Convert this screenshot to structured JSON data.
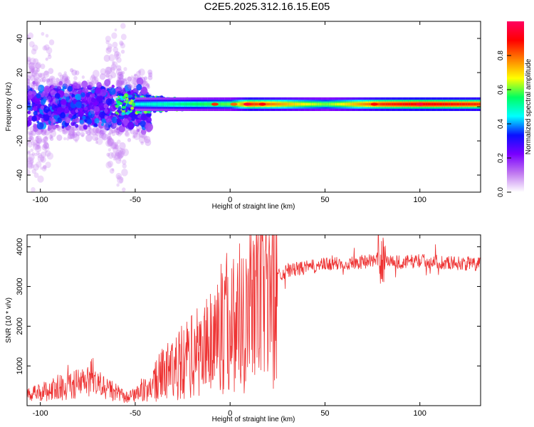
{
  "chart_data": [
    {
      "type": "heatmap",
      "title": "C2E5.2025.312.16.15.E05",
      "xlabel": "Height of straight line (km)",
      "ylabel": "Frequency (Hz)",
      "xlim": [
        -107,
        132
      ],
      "ylim": [
        -50,
        50
      ],
      "x_ticks": [
        -100,
        -50,
        0,
        50,
        100
      ],
      "x_tick_labels": [
        "-100",
        "-50",
        "0",
        "50",
        "100"
      ],
      "y_ticks": [
        -40,
        -20,
        0,
        20,
        40
      ],
      "y_tick_labels": [
        "-40",
        "-20",
        "0",
        "20",
        "40"
      ],
      "colorbar": {
        "label": "Normalized spectral amplitude",
        "range": [
          0,
          1
        ],
        "ticks": [
          0.0,
          0.2,
          0.4,
          0.6,
          0.8
        ],
        "tick_labels": [
          "0.0",
          "0.2",
          "0.4",
          "0.6",
          "0.8"
        ],
        "colors": [
          "#ffffff",
          "#c078f0",
          "#7a00ff",
          "#0a10ff",
          "#00ffff",
          "#00ff60",
          "#ffff00",
          "#ff8000",
          "#ff0000",
          "#ff0060"
        ]
      },
      "ridge": {
        "frequency_hz": 1.5,
        "description_points": [
          {
            "x": -50,
            "amplitude": 0.45
          },
          {
            "x": -20,
            "amplitude": 0.55
          },
          {
            "x": 0,
            "amplitude": 0.6
          },
          {
            "x": 10,
            "amplitude": 0.85
          },
          {
            "x": 50,
            "amplitude": 0.6
          },
          {
            "x": 80,
            "amplitude": 0.85
          },
          {
            "x": 100,
            "amplitude": 0.9
          },
          {
            "x": 130,
            "amplitude": 0.85
          }
        ]
      }
    },
    {
      "type": "line",
      "xlabel": "Height of straight line (km)",
      "ylabel": "SNR (10 * v/v)",
      "xlim": [
        -107,
        132
      ],
      "ylim": [
        0,
        4300
      ],
      "x_ticks": [
        -100,
        -50,
        0,
        50,
        100
      ],
      "x_tick_labels": [
        "-100",
        "-50",
        "0",
        "50",
        "100"
      ],
      "y_ticks": [
        1000,
        2000,
        3000,
        4000
      ],
      "y_tick_labels": [
        "1000",
        "2000",
        "3000",
        "4000"
      ],
      "color": "#ee3333",
      "series": [
        {
          "name": "SNR",
          "trend": [
            {
              "x": -107,
              "y": 250
            },
            {
              "x": -90,
              "y": 450
            },
            {
              "x": -75,
              "y": 600
            },
            {
              "x": -65,
              "y": 450
            },
            {
              "x": -55,
              "y": 200
            },
            {
              "x": -45,
              "y": 350
            },
            {
              "x": -35,
              "y": 800
            },
            {
              "x": -25,
              "y": 1100
            },
            {
              "x": -15,
              "y": 1400
            },
            {
              "x": -8,
              "y": 1800
            },
            {
              "x": 0,
              "y": 2100
            },
            {
              "x": 8,
              "y": 2400
            },
            {
              "x": 15,
              "y": 2800
            },
            {
              "x": 22,
              "y": 3200
            },
            {
              "x": 30,
              "y": 3400
            },
            {
              "x": 50,
              "y": 3550
            },
            {
              "x": 70,
              "y": 3620
            },
            {
              "x": 80,
              "y": 3700
            },
            {
              "x": 90,
              "y": 3600
            },
            {
              "x": 100,
              "y": 3650
            },
            {
              "x": 132,
              "y": 3550
            }
          ]
        }
      ]
    }
  ]
}
